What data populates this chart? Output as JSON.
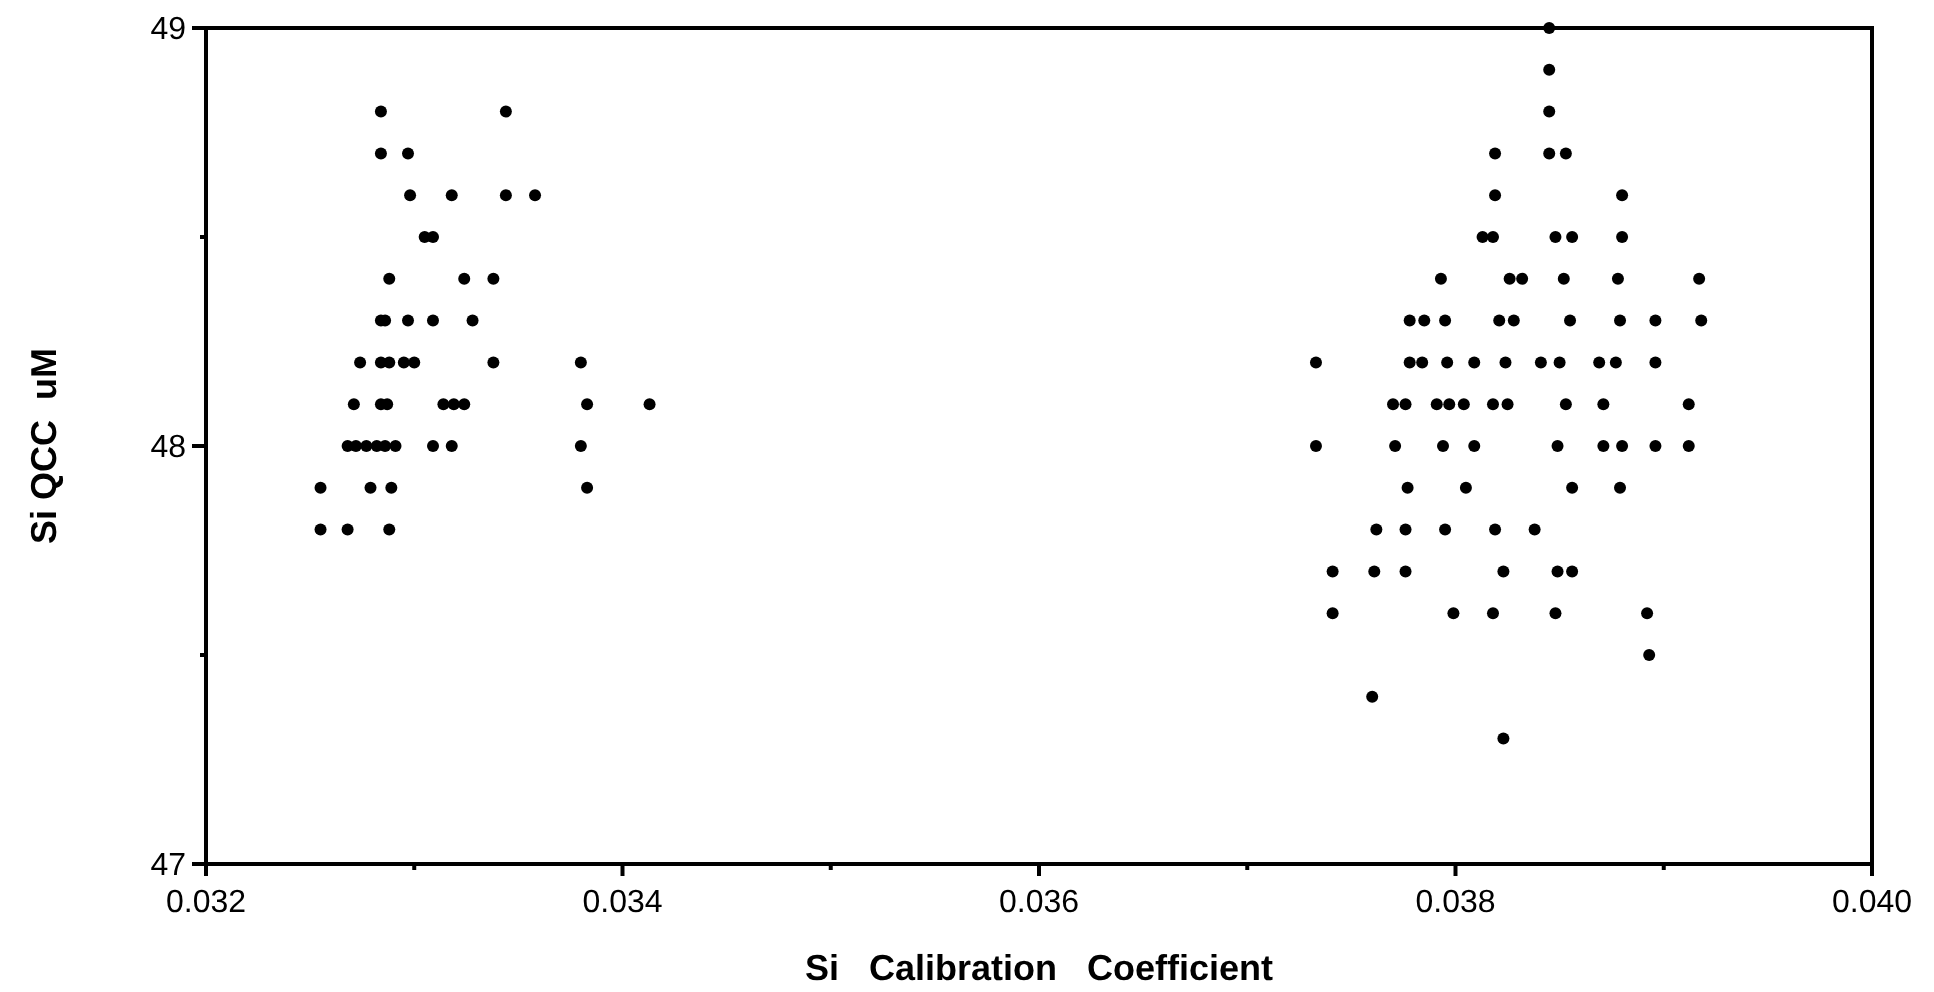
{
  "chart_data": {
    "type": "scatter",
    "xlabel": "Si   Calibration   Coefficient",
    "ylabel": "Si QCC  uM",
    "xlim": [
      0.032,
      0.04
    ],
    "ylim": [
      47,
      49
    ],
    "xticks": [
      0.032,
      {
        "value": 0.033,
        "label": null
      },
      0.034,
      {
        "value": 0.035,
        "label": null
      },
      0.036,
      {
        "value": 0.037,
        "label": null
      },
      0.038,
      {
        "value": 0.039,
        "label": null
      },
      {
        "value": 0.04,
        "label": "0.040"
      }
    ],
    "yticks": [
      47,
      {
        "value": 47.5,
        "label": null
      },
      48,
      {
        "value": 48.5,
        "label": null
      },
      49
    ],
    "grid": false,
    "marker": "circle",
    "series": [
      {
        "color": "#000000",
        "x": [
          0.03284,
          0.03344,
          0.03284,
          0.03297,
          0.03298,
          0.03318,
          0.03344,
          0.03358,
          0.03305,
          0.03309,
          0.03288,
          0.03324,
          0.03338,
          0.03284,
          0.03286,
          0.03297,
          0.03309,
          0.03328,
          0.03274,
          0.03284,
          0.03288,
          0.03295,
          0.033,
          0.03338,
          0.0338,
          0.03271,
          0.03284,
          0.03287,
          0.03314,
          0.03319,
          0.03324,
          0.03383,
          0.03413,
          0.03268,
          0.03272,
          0.03277,
          0.03282,
          0.03286,
          0.03291,
          0.03309,
          0.03318,
          0.0338,
          0.03255,
          0.03279,
          0.03289,
          0.03383,
          0.03255,
          0.03268,
          0.03288,
          0.03845,
          0.03845,
          0.03845,
          0.03819,
          0.03845,
          0.03853,
          0.03819,
          0.0388,
          0.03813,
          0.03818,
          0.03848,
          0.03856,
          0.0388,
          0.03793,
          0.03826,
          0.03832,
          0.03852,
          0.03878,
          0.03917,
          0.03778,
          0.03785,
          0.03795,
          0.03821,
          0.03828,
          0.03855,
          0.03879,
          0.03896,
          0.03918,
          0.03733,
          0.03778,
          0.03784,
          0.03796,
          0.03809,
          0.03824,
          0.03841,
          0.0385,
          0.03869,
          0.03877,
          0.03896,
          0.0377,
          0.03776,
          0.03791,
          0.03797,
          0.03804,
          0.03818,
          0.03825,
          0.03853,
          0.03871,
          0.03912,
          0.03733,
          0.03771,
          0.03794,
          0.03809,
          0.03849,
          0.03871,
          0.0388,
          0.03896,
          0.03912,
          0.03777,
          0.03805,
          0.03856,
          0.03879,
          0.03762,
          0.03776,
          0.03795,
          0.03819,
          0.03838,
          0.03741,
          0.03761,
          0.03776,
          0.03823,
          0.03849,
          0.03856,
          0.03741,
          0.03799,
          0.03818,
          0.03848,
          0.03892,
          0.03893,
          0.0376,
          0.03823
        ],
        "values": [
          48.8,
          48.8,
          48.7,
          48.7,
          48.6,
          48.6,
          48.6,
          48.6,
          48.5,
          48.5,
          48.4,
          48.4,
          48.4,
          48.3,
          48.3,
          48.3,
          48.3,
          48.3,
          48.2,
          48.2,
          48.2,
          48.2,
          48.2,
          48.2,
          48.2,
          48.1,
          48.1,
          48.1,
          48.1,
          48.1,
          48.1,
          48.1,
          48.1,
          48.0,
          48.0,
          48.0,
          48.0,
          48.0,
          48.0,
          48.0,
          48.0,
          48.0,
          47.9,
          47.9,
          47.9,
          47.9,
          47.8,
          47.8,
          47.8,
          49.0,
          48.9,
          48.8,
          48.7,
          48.7,
          48.7,
          48.6,
          48.6,
          48.5,
          48.5,
          48.5,
          48.5,
          48.5,
          48.4,
          48.4,
          48.4,
          48.4,
          48.4,
          48.4,
          48.3,
          48.3,
          48.3,
          48.3,
          48.3,
          48.3,
          48.3,
          48.3,
          48.3,
          48.2,
          48.2,
          48.2,
          48.2,
          48.2,
          48.2,
          48.2,
          48.2,
          48.2,
          48.2,
          48.2,
          48.1,
          48.1,
          48.1,
          48.1,
          48.1,
          48.1,
          48.1,
          48.1,
          48.1,
          48.1,
          48.0,
          48.0,
          48.0,
          48.0,
          48.0,
          48.0,
          48.0,
          48.0,
          48.0,
          47.9,
          47.9,
          47.9,
          47.9,
          47.8,
          47.8,
          47.8,
          47.8,
          47.8,
          47.7,
          47.7,
          47.7,
          47.7,
          47.7,
          47.7,
          47.6,
          47.6,
          47.6,
          47.6,
          47.6,
          47.5,
          47.4,
          47.3
        ]
      }
    ]
  }
}
